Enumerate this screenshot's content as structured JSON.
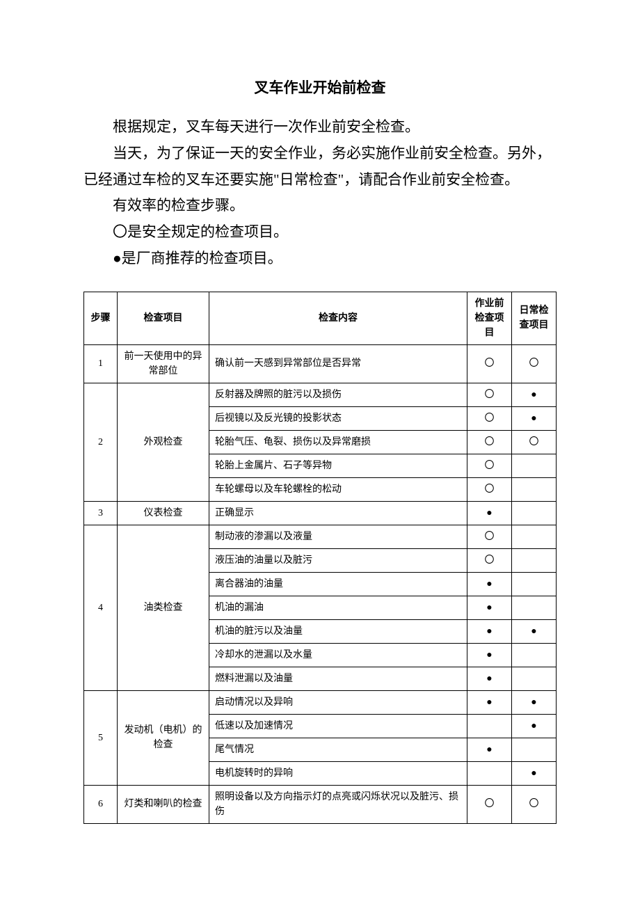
{
  "title": "叉车作业开始前检查",
  "intro": {
    "p1": "根据规定，叉车每天进行一次作业前安全检查。",
    "p2": "当天，为了保证一天的安全作业，务必实施作业前安全检查。另外，已经通过车检的叉车还要实施\"日常检查\"，请配合作业前安全检查。",
    "p3": "有效率的检查步骤。",
    "p4": "〇是安全规定的检查项目。",
    "p5": "●是厂商推荐的检查项目。"
  },
  "symbols": {
    "open": "〇",
    "solid": "●"
  },
  "table": {
    "headers": {
      "step": "步骤",
      "item": "检查项目",
      "content": "检查内容",
      "pre": "作业前检查项目",
      "daily": "日常检查项目"
    },
    "groups": [
      {
        "step": "1",
        "item": "前一天使用中的异常部位",
        "rows": [
          {
            "content": "确认前一天感到异常部位是否异常",
            "pre": "open",
            "daily": "open"
          }
        ]
      },
      {
        "step": "2",
        "item": "外观检查",
        "rows": [
          {
            "content": "反射器及牌照的脏污以及损伤",
            "pre": "open",
            "daily": "solid"
          },
          {
            "content": "后视镜以及反光镜的投影状态",
            "pre": "open",
            "daily": "solid"
          },
          {
            "content": "轮胎气压、龟裂、损伤以及异常磨损",
            "pre": "open",
            "daily": "open"
          },
          {
            "content": "轮胎上金属片、石子等异物",
            "pre": "open",
            "daily": ""
          },
          {
            "content": "车轮螺母以及车轮螺栓的松动",
            "pre": "open",
            "daily": ""
          }
        ]
      },
      {
        "step": "3",
        "item": "仪表检查",
        "rows": [
          {
            "content": "正确显示",
            "pre": "solid",
            "daily": ""
          }
        ]
      },
      {
        "step": "4",
        "item": "油类检查",
        "rows": [
          {
            "content": "制动液的渗漏以及液量",
            "pre": "open",
            "daily": ""
          },
          {
            "content": "液压油的油量以及脏污",
            "pre": "open",
            "daily": ""
          },
          {
            "content": "离合器油的油量",
            "pre": "solid",
            "daily": ""
          },
          {
            "content": "机油的漏油",
            "pre": "solid",
            "daily": ""
          },
          {
            "content": "机油的脏污以及油量",
            "pre": "solid",
            "daily": "solid"
          },
          {
            "content": "冷却水的泄漏以及水量",
            "pre": "solid",
            "daily": ""
          },
          {
            "content": "燃料泄漏以及油量",
            "pre": "solid",
            "daily": ""
          }
        ]
      },
      {
        "step": "5",
        "item": "发动机（电机）的检查",
        "rows": [
          {
            "content": "启动情况以及异响",
            "pre": "solid",
            "daily": "solid"
          },
          {
            "content": "低速以及加速情况",
            "pre": "",
            "daily": "solid"
          },
          {
            "content": "尾气情况",
            "pre": "solid",
            "daily": ""
          },
          {
            "content": "电机旋转时的异响",
            "pre": "",
            "daily": "solid"
          }
        ]
      },
      {
        "step": "6",
        "item": "灯类和喇叭的检查",
        "rows": [
          {
            "content": "照明设备以及方向指示灯的点亮或闪烁状况以及脏污、损伤",
            "pre": "open",
            "daily": "open"
          }
        ]
      }
    ]
  }
}
